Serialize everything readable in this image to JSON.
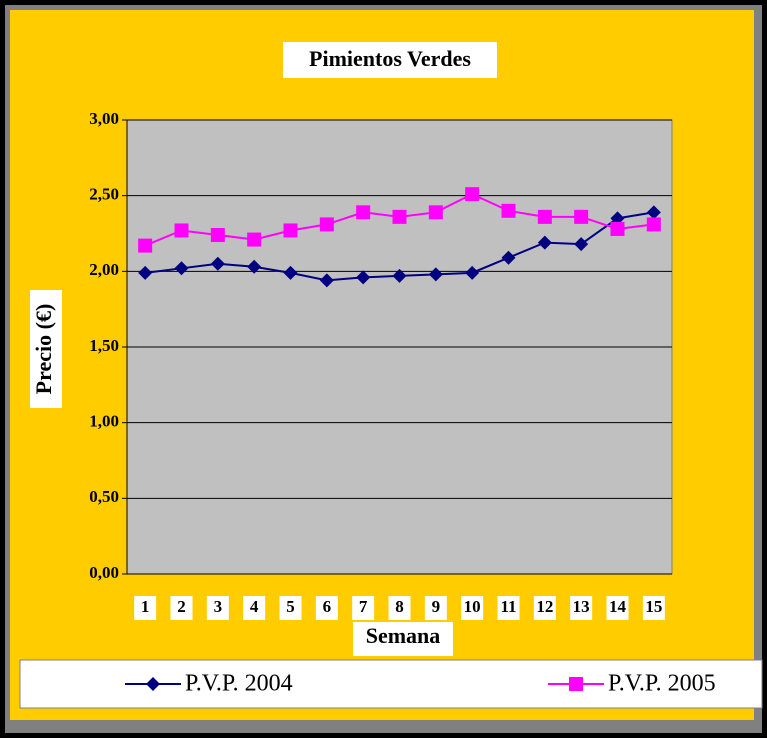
{
  "chart_data": {
    "type": "line",
    "title": "Pimientos Verdes",
    "x_label": "Semana",
    "y_label": "Precio (€)",
    "categories": [
      "1",
      "2",
      "3",
      "4",
      "5",
      "6",
      "7",
      "8",
      "9",
      "10",
      "11",
      "12",
      "13",
      "14",
      "15"
    ],
    "series": [
      {
        "name": "P.V.P. 2004",
        "color": "#000080",
        "marker": "diamond",
        "values": [
          1.99,
          2.02,
          2.05,
          2.03,
          1.99,
          1.94,
          1.96,
          1.97,
          1.98,
          1.99,
          2.09,
          2.19,
          2.18,
          2.35,
          2.39
        ]
      },
      {
        "name": "P.V.P. 2005",
        "color": "#FF00FF",
        "marker": "square",
        "values": [
          2.17,
          2.27,
          2.24,
          2.21,
          2.27,
          2.31,
          2.39,
          2.36,
          2.39,
          2.51,
          2.4,
          2.36,
          2.36,
          2.28,
          2.31
        ]
      }
    ],
    "ylim": [
      0,
      3
    ],
    "yticks": [
      {
        "value": 0,
        "label": "0,00"
      },
      {
        "value": 0.5,
        "label": "0,50"
      },
      {
        "value": 1,
        "label": "1,00"
      },
      {
        "value": 1.5,
        "label": "1,50"
      },
      {
        "value": 2,
        "label": "2,00"
      },
      {
        "value": 2.5,
        "label": "2,50"
      },
      {
        "value": 3,
        "label": "3,00"
      }
    ],
    "grid": true,
    "legend": "bottom"
  }
}
